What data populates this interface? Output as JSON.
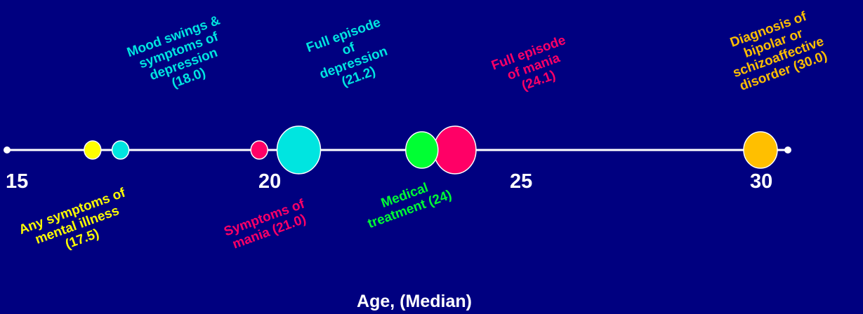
{
  "colors": {
    "background": "#000080",
    "axis": "#ffffff",
    "yellow": "#ffff00",
    "cyan": "#00e5e0",
    "magenta": "#ff0066",
    "green": "#00ff33",
    "orange": "#ffbf00"
  },
  "axis": {
    "title": "Age, (Median)",
    "ticks": [
      "15",
      "20",
      "25",
      "30"
    ]
  },
  "events": [
    {
      "id": "any-symptoms",
      "age": 17.5,
      "label": "Any symptoms of\nmental illness\n(17.5)",
      "color": "#ffff00",
      "size": "small"
    },
    {
      "id": "mood-swings",
      "age": 18.0,
      "label": "Mood swings &\nsymptoms of\ndepression\n(18.0)",
      "color": "#00e5e0",
      "size": "small"
    },
    {
      "id": "symptoms-mania",
      "age": 21.0,
      "label": "Symptoms of\nmania (21.0)",
      "color": "#ff0066",
      "size": "small"
    },
    {
      "id": "full-depression",
      "age": 21.2,
      "label": "Full episode\nof\ndepression\n(21.2)",
      "color": "#00e5e0",
      "size": "large"
    },
    {
      "id": "medical-treatment",
      "age": 24,
      "label": "Medical\ntreatment (24)",
      "color": "#00ff33",
      "size": "large"
    },
    {
      "id": "full-mania",
      "age": 24.1,
      "label": "Full episode\nof mania\n(24.1)",
      "color": "#ff0066",
      "size": "large"
    },
    {
      "id": "diagnosis",
      "age": 30.0,
      "label": "Diagnosis of\nbipolar or\nschizoaffective\ndisorder (30.0)",
      "color": "#ffbf00",
      "size": "large"
    }
  ]
}
